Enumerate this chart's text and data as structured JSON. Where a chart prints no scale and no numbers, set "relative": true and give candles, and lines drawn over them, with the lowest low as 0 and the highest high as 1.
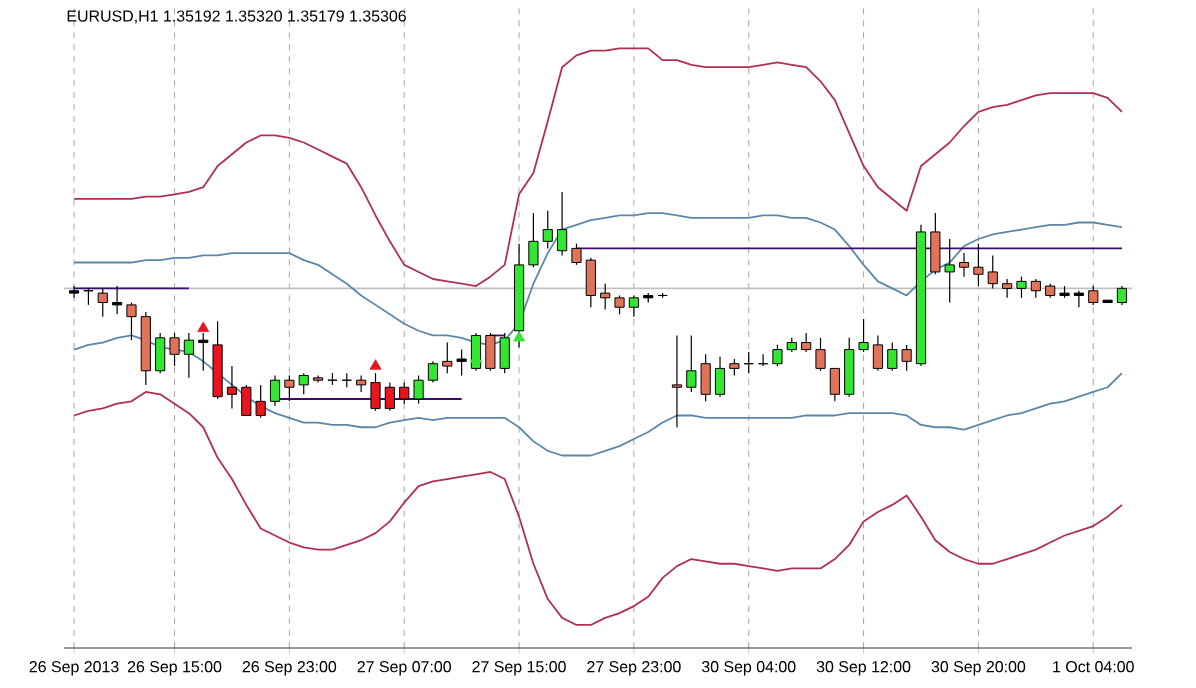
{
  "chart_data": {
    "type": "candlestick",
    "title": "EURUSD,H1  1.35192 1.35320 1.35179 1.35306",
    "relative": true,
    "grid": true,
    "categories": [
      "26 Sep 2013",
      null,
      null,
      null,
      null,
      null,
      null,
      "26 Sep 15:00",
      null,
      null,
      null,
      null,
      null,
      null,
      null,
      "26 Sep 23:00",
      null,
      null,
      null,
      null,
      null,
      null,
      null,
      "27 Sep 07:00",
      null,
      null,
      null,
      null,
      null,
      null,
      null,
      "27 Sep 15:00",
      null,
      null,
      null,
      null,
      null,
      null,
      null,
      "27 Sep 23:00",
      null,
      null,
      null,
      null,
      null,
      null,
      null,
      "30 Sep 04:00",
      null,
      null,
      null,
      null,
      null,
      null,
      null,
      "30 Sep 12:00",
      null,
      null,
      null,
      null,
      null,
      null,
      null,
      "30 Sep 20:00",
      null,
      null,
      null,
      null,
      null,
      null,
      null,
      "1 Oct 04:00",
      null,
      null
    ],
    "ohlc": [
      [
        0.58,
        0.6,
        0.55,
        0.57
      ],
      [
        0.58,
        0.59,
        0.52,
        0.58
      ],
      [
        0.57,
        0.59,
        0.47,
        0.53
      ],
      [
        0.53,
        0.6,
        0.48,
        0.52
      ],
      [
        0.52,
        0.53,
        0.37,
        0.47
      ],
      [
        0.47,
        0.49,
        0.18,
        0.24
      ],
      [
        0.24,
        0.4,
        0.23,
        0.38
      ],
      [
        0.38,
        0.4,
        0.26,
        0.31
      ],
      [
        0.31,
        0.4,
        0.21,
        0.37
      ],
      [
        0.37,
        0.4,
        0.24,
        0.36
      ],
      [
        0.35,
        0.45,
        0.12,
        0.13
      ],
      [
        0.17,
        0.26,
        0.08,
        0.14
      ],
      [
        0.17,
        0.18,
        0.05,
        0.05
      ],
      [
        0.11,
        0.18,
        0.04,
        0.05
      ],
      [
        0.11,
        0.22,
        0.09,
        0.2
      ],
      [
        0.2,
        0.22,
        0.11,
        0.17
      ],
      [
        0.18,
        0.23,
        0.14,
        0.22
      ],
      [
        0.21,
        0.22,
        0.19,
        0.2
      ],
      [
        0.2,
        0.23,
        0.18,
        0.2
      ],
      [
        0.2,
        0.23,
        0.17,
        0.2
      ],
      [
        0.2,
        0.22,
        0.15,
        0.18
      ],
      [
        0.19,
        0.23,
        0.07,
        0.08
      ],
      [
        0.17,
        0.19,
        0.07,
        0.08
      ],
      [
        0.17,
        0.19,
        0.1,
        0.12
      ],
      [
        0.12,
        0.22,
        0.1,
        0.2
      ],
      [
        0.2,
        0.28,
        0.19,
        0.27
      ],
      [
        0.28,
        0.36,
        0.23,
        0.26
      ],
      [
        0.29,
        0.33,
        0.22,
        0.28
      ],
      [
        0.25,
        0.4,
        0.24,
        0.39
      ],
      [
        0.39,
        0.4,
        0.24,
        0.25
      ],
      [
        0.25,
        0.4,
        0.23,
        0.38
      ],
      [
        0.41,
        0.78,
        0.34,
        0.69
      ],
      [
        0.69,
        0.91,
        0.68,
        0.79
      ],
      [
        0.79,
        0.92,
        0.76,
        0.84
      ],
      [
        0.75,
        1.0,
        0.73,
        0.84
      ],
      [
        0.76,
        0.78,
        0.69,
        0.7
      ],
      [
        0.71,
        0.72,
        0.51,
        0.56
      ],
      [
        0.57,
        0.61,
        0.5,
        0.55
      ],
      [
        0.55,
        0.56,
        0.48,
        0.51
      ],
      [
        0.51,
        0.56,
        0.47,
        0.55
      ],
      [
        0.56,
        0.57,
        0.53,
        0.55
      ],
      [
        0.56,
        0.57,
        0.55,
        0.56
      ],
      [
        0.18,
        0.39,
        0.0,
        0.17
      ],
      [
        0.17,
        0.39,
        0.15,
        0.24
      ],
      [
        0.27,
        0.31,
        0.11,
        0.14
      ],
      [
        0.14,
        0.3,
        0.13,
        0.25
      ],
      [
        0.27,
        0.29,
        0.22,
        0.25
      ],
      [
        0.27,
        0.32,
        0.23,
        0.27
      ],
      [
        0.27,
        0.31,
        0.26,
        0.27
      ],
      [
        0.27,
        0.35,
        0.26,
        0.33
      ],
      [
        0.33,
        0.38,
        0.32,
        0.36
      ],
      [
        0.36,
        0.4,
        0.32,
        0.33
      ],
      [
        0.33,
        0.38,
        0.24,
        0.25
      ],
      [
        0.25,
        0.25,
        0.11,
        0.14
      ],
      [
        0.14,
        0.38,
        0.13,
        0.33
      ],
      [
        0.33,
        0.46,
        0.32,
        0.36
      ],
      [
        0.35,
        0.39,
        0.24,
        0.25
      ],
      [
        0.25,
        0.36,
        0.24,
        0.33
      ],
      [
        0.33,
        0.35,
        0.24,
        0.28
      ],
      [
        0.27,
        0.86,
        0.26,
        0.83
      ],
      [
        0.83,
        0.91,
        0.65,
        0.66
      ],
      [
        0.66,
        0.8,
        0.53,
        0.69
      ],
      [
        0.7,
        0.74,
        0.64,
        0.68
      ],
      [
        0.68,
        0.78,
        0.6,
        0.65
      ],
      [
        0.66,
        0.73,
        0.59,
        0.61
      ],
      [
        0.61,
        0.63,
        0.55,
        0.59
      ],
      [
        0.59,
        0.64,
        0.55,
        0.62
      ],
      [
        0.62,
        0.63,
        0.55,
        0.58
      ],
      [
        0.6,
        0.61,
        0.55,
        0.56
      ],
      [
        0.57,
        0.6,
        0.55,
        0.56
      ],
      [
        0.57,
        0.58,
        0.51,
        0.56
      ],
      [
        0.58,
        0.6,
        0.52,
        0.53
      ],
      [
        0.54,
        0.54,
        0.53,
        0.53
      ],
      [
        0.53,
        0.6,
        0.52,
        0.59
      ]
    ],
    "colors": [
      "#000000",
      "#000000",
      "#e0735a",
      "#000000",
      "#e0735a",
      "#e0735a",
      "#32e632",
      "#e0735a",
      "#32e632",
      "#000000",
      "#e8141e",
      "#e8141e",
      "#e8141e",
      "#e8141e",
      "#32e632",
      "#e0735a",
      "#32e632",
      "#e0735a",
      "#000000",
      "#000000",
      "#e0735a",
      "#e8141e",
      "#e8141e",
      "#e8141e",
      "#32e632",
      "#32e632",
      "#e0735a",
      "#000000",
      "#32e632",
      "#e0735a",
      "#32e632",
      "#32e632",
      "#32e632",
      "#32e632",
      "#32e632",
      "#e0735a",
      "#e0735a",
      "#e0735a",
      "#e0735a",
      "#32e632",
      "#000000",
      "#000000",
      "#e0735a",
      "#32e632",
      "#e0735a",
      "#32e632",
      "#e0735a",
      "#000000",
      "#000000",
      "#32e632",
      "#32e632",
      "#e0735a",
      "#e0735a",
      "#e0735a",
      "#32e632",
      "#32e632",
      "#e0735a",
      "#32e632",
      "#e0735a",
      "#32e632",
      "#e0735a",
      "#32e632",
      "#e0735a",
      "#e0735a",
      "#e0735a",
      "#e0735a",
      "#32e632",
      "#e0735a",
      "#e0735a",
      "#000000",
      "#000000",
      "#e0735a",
      "#000000",
      "#32e632"
    ],
    "series": [
      {
        "type": "line",
        "color": "#b03050",
        "values": [
          0.97,
          0.97,
          0.97,
          0.97,
          0.97,
          0.98,
          0.98,
          0.99,
          1.0,
          1.02,
          1.11,
          1.16,
          1.21,
          1.24,
          1.24,
          1.23,
          1.21,
          1.18,
          1.15,
          1.12,
          1.02,
          0.9,
          0.79,
          0.69,
          0.66,
          0.63,
          0.62,
          0.61,
          0.6,
          0.64,
          0.69,
          0.99,
          1.08,
          1.3,
          1.53,
          1.58,
          1.6,
          1.6,
          1.61,
          1.61,
          1.61,
          1.56,
          1.56,
          1.54,
          1.53,
          1.53,
          1.53,
          1.53,
          1.54,
          1.55,
          1.54,
          1.53,
          1.47,
          1.39,
          1.25,
          1.11,
          1.02,
          0.97,
          0.92,
          1.11,
          1.16,
          1.21,
          1.28,
          1.34,
          1.36,
          1.37,
          1.39,
          1.41,
          1.42,
          1.42,
          1.42,
          1.42,
          1.4,
          1.34
        ]
      },
      {
        "type": "line",
        "color": "#b03050",
        "values": [
          0.05,
          0.07,
          0.08,
          0.1,
          0.11,
          0.15,
          0.14,
          0.1,
          0.06,
          0.0,
          -0.13,
          -0.22,
          -0.33,
          -0.43,
          -0.46,
          -0.49,
          -0.51,
          -0.52,
          -0.52,
          -0.5,
          -0.48,
          -0.45,
          -0.4,
          -0.32,
          -0.25,
          -0.23,
          -0.22,
          -0.21,
          -0.2,
          -0.19,
          -0.22,
          -0.38,
          -0.58,
          -0.73,
          -0.81,
          -0.84,
          -0.84,
          -0.81,
          -0.79,
          -0.76,
          -0.72,
          -0.64,
          -0.59,
          -0.56,
          -0.57,
          -0.58,
          -0.58,
          -0.59,
          -0.6,
          -0.61,
          -0.6,
          -0.6,
          -0.6,
          -0.56,
          -0.5,
          -0.4,
          -0.36,
          -0.33,
          -0.29,
          -0.38,
          -0.48,
          -0.53,
          -0.56,
          -0.58,
          -0.58,
          -0.56,
          -0.54,
          -0.52,
          -0.49,
          -0.46,
          -0.44,
          -0.42,
          -0.38,
          -0.33
        ]
      },
      {
        "type": "line",
        "color": "#5b87a8",
        "values": [
          0.7,
          0.7,
          0.7,
          0.7,
          0.7,
          0.71,
          0.71,
          0.72,
          0.72,
          0.73,
          0.73,
          0.74,
          0.74,
          0.74,
          0.74,
          0.74,
          0.71,
          0.69,
          0.65,
          0.61,
          0.56,
          0.52,
          0.48,
          0.44,
          0.41,
          0.39,
          0.39,
          0.38,
          0.36,
          0.35,
          0.37,
          0.44,
          0.61,
          0.74,
          0.84,
          0.86,
          0.88,
          0.89,
          0.9,
          0.9,
          0.91,
          0.91,
          0.9,
          0.89,
          0.89,
          0.89,
          0.89,
          0.89,
          0.9,
          0.9,
          0.89,
          0.89,
          0.87,
          0.84,
          0.77,
          0.69,
          0.62,
          0.59,
          0.56,
          0.62,
          0.67,
          0.7,
          0.77,
          0.8,
          0.82,
          0.83,
          0.84,
          0.85,
          0.86,
          0.86,
          0.87,
          0.87,
          0.86,
          0.85
        ]
      },
      {
        "type": "line",
        "color": "#5b87a8",
        "values": [
          0.33,
          0.35,
          0.36,
          0.38,
          0.39,
          0.37,
          0.34,
          0.33,
          0.32,
          0.28,
          0.23,
          0.18,
          0.13,
          0.09,
          0.06,
          0.04,
          0.02,
          0.02,
          0.01,
          0.01,
          0.0,
          0.0,
          0.02,
          0.03,
          0.04,
          0.03,
          0.04,
          0.04,
          0.04,
          0.04,
          0.04,
          0.0,
          -0.06,
          -0.1,
          -0.12,
          -0.12,
          -0.12,
          -0.1,
          -0.08,
          -0.05,
          -0.02,
          0.02,
          0.05,
          0.05,
          0.04,
          0.04,
          0.04,
          0.04,
          0.04,
          0.04,
          0.04,
          0.05,
          0.05,
          0.05,
          0.06,
          0.06,
          0.06,
          0.06,
          0.05,
          0.01,
          0.0,
          0.0,
          -0.01,
          0.01,
          0.03,
          0.05,
          0.06,
          0.08,
          0.1,
          0.11,
          0.13,
          0.15,
          0.17,
          0.23
        ]
      },
      {
        "type": "line",
        "color": "#3c0a6e",
        "values": [
          0.59,
          0.59,
          0.59,
          0.59,
          0.59,
          0.59,
          0.59,
          0.59,
          0.59,
          null,
          null,
          null,
          null,
          null,
          0.12,
          0.12,
          0.12,
          0.12,
          0.12,
          0.12,
          0.12,
          0.12,
          0.12,
          0.12,
          0.12,
          0.12,
          0.12,
          0.12,
          null,
          0.39,
          0.39,
          null,
          null,
          null,
          null,
          0.76,
          0.76,
          0.76,
          0.76,
          0.76,
          0.76,
          0.76,
          0.76,
          0.76,
          0.76,
          0.76,
          0.76,
          0.76,
          0.76,
          0.76,
          0.76,
          0.76,
          0.76,
          0.76,
          0.76,
          0.76,
          0.76,
          0.76,
          0.76,
          0.76,
          0.76,
          0.76,
          0.76,
          0.76,
          0.76,
          0.76,
          0.76,
          0.76,
          0.76,
          0.76,
          0.76,
          0.76,
          0.76,
          0.76
        ]
      },
      {
        "type": "scatter",
        "marker": "triangle",
        "color": "#e8141e",
        "values": [
          null,
          null,
          null,
          null,
          null,
          null,
          null,
          null,
          null,
          0.42,
          null,
          null,
          null,
          null,
          null,
          null,
          null,
          null,
          null,
          null,
          null,
          0.26,
          null,
          null,
          null,
          null,
          null,
          null,
          null,
          null,
          null,
          null,
          null,
          null,
          null,
          null,
          null,
          null,
          null,
          null,
          null,
          null,
          null,
          null,
          null,
          null,
          null,
          null,
          null,
          null,
          null,
          null,
          null,
          null,
          null,
          null,
          null,
          null,
          null,
          null,
          null,
          null,
          null,
          null,
          null,
          null,
          null,
          null,
          null,
          null,
          null,
          null,
          null,
          null
        ]
      },
      {
        "type": "scatter",
        "marker": "triangle",
        "color": "#32e632",
        "values": [
          null,
          null,
          null,
          null,
          null,
          null,
          null,
          null,
          null,
          null,
          null,
          null,
          null,
          null,
          null,
          null,
          null,
          null,
          null,
          null,
          null,
          null,
          null,
          null,
          null,
          null,
          null,
          null,
          0.29,
          null,
          null,
          0.38,
          null,
          null,
          null,
          null,
          null,
          null,
          null,
          null,
          null,
          null,
          null,
          null,
          null,
          null,
          null,
          null,
          null,
          null,
          null,
          null,
          null,
          null,
          null,
          null,
          null,
          null,
          null,
          null,
          null,
          null,
          null,
          null,
          null,
          null,
          null,
          null,
          null,
          null,
          null,
          null,
          null,
          null
        ]
      }
    ],
    "ref_lines": [
      {
        "axis": "y",
        "value": 0.59,
        "color": "#c0c0c0"
      }
    ]
  }
}
